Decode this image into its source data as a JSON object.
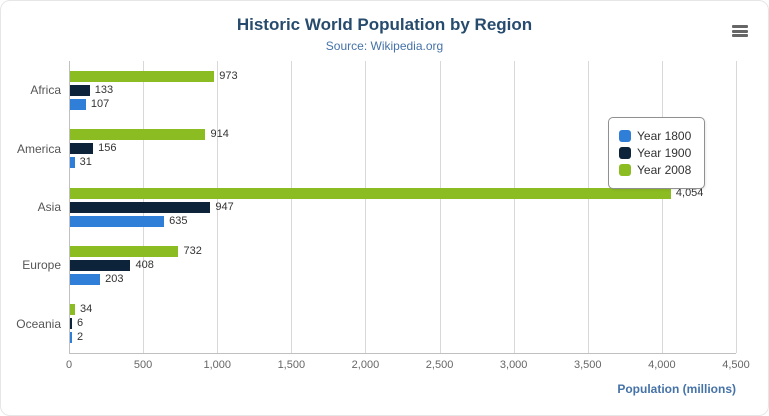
{
  "chart_data": {
    "type": "bar",
    "title": "Historic World Population by Region",
    "subtitle": "Source: Wikipedia.org",
    "categories": [
      "Africa",
      "America",
      "Asia",
      "Europe",
      "Oceania"
    ],
    "series": [
      {
        "name": "Year 1800",
        "color": "#2f7ed8",
        "values": [
          107,
          31,
          635,
          203,
          2
        ]
      },
      {
        "name": "Year 1900",
        "color": "#0d233a",
        "values": [
          133,
          156,
          947,
          408,
          6
        ]
      },
      {
        "name": "Year 2008",
        "color": "#8bbc21",
        "values": [
          973,
          914,
          4054,
          732,
          34
        ]
      }
    ],
    "xlabel": "Population (millions)",
    "ylabel": "",
    "xlim": [
      0,
      4500
    ],
    "xticks": [
      0,
      500,
      1000,
      1500,
      2000,
      2500,
      3000,
      3500,
      4000,
      4500
    ],
    "grid": true,
    "legend_position": "right",
    "bar_display_order_top_to_bottom": [
      "Year 2008",
      "Year 1900",
      "Year 1800"
    ]
  },
  "context_menu": {
    "icon": "hamburger-icon"
  }
}
